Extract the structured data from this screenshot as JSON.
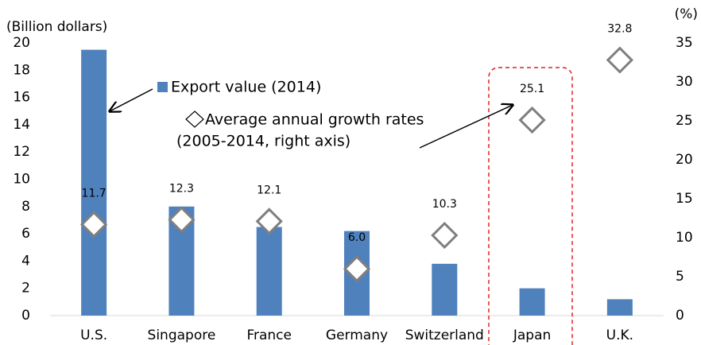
{
  "chart_data": {
    "type": "bar",
    "ylabel": "(Billion dollars)",
    "y2label": "(%)",
    "categories": [
      "U.S.",
      "Singapore",
      "France",
      "Germany",
      "Switzerland",
      "Japan",
      "U.K."
    ],
    "series": [
      {
        "name": "Export value (2014)",
        "type": "bar",
        "color": "#4f81bd",
        "values": [
          19.5,
          8.0,
          6.5,
          6.2,
          3.8,
          2.0,
          1.2
        ]
      },
      {
        "name": "Average annual growth rates",
        "type": "scatter",
        "axis": "y2",
        "color": "#7f7f7f",
        "values": [
          11.7,
          12.3,
          12.1,
          6.0,
          10.3,
          25.1,
          32.8
        ],
        "value_labels": [
          "11.7",
          "12.3",
          "12.1",
          "6.0",
          "10.3",
          "25.1",
          "32.8"
        ]
      }
    ],
    "annotation": "(2005-2014, right axis)",
    "ylim": [
      0,
      20
    ],
    "yticks": [
      0,
      2,
      4,
      6,
      8,
      10,
      12,
      14,
      16,
      18,
      20
    ],
    "y2lim": [
      0,
      35
    ],
    "y2ticks": [
      0,
      5,
      10,
      15,
      20,
      25,
      30,
      35
    ],
    "grid": false
  }
}
